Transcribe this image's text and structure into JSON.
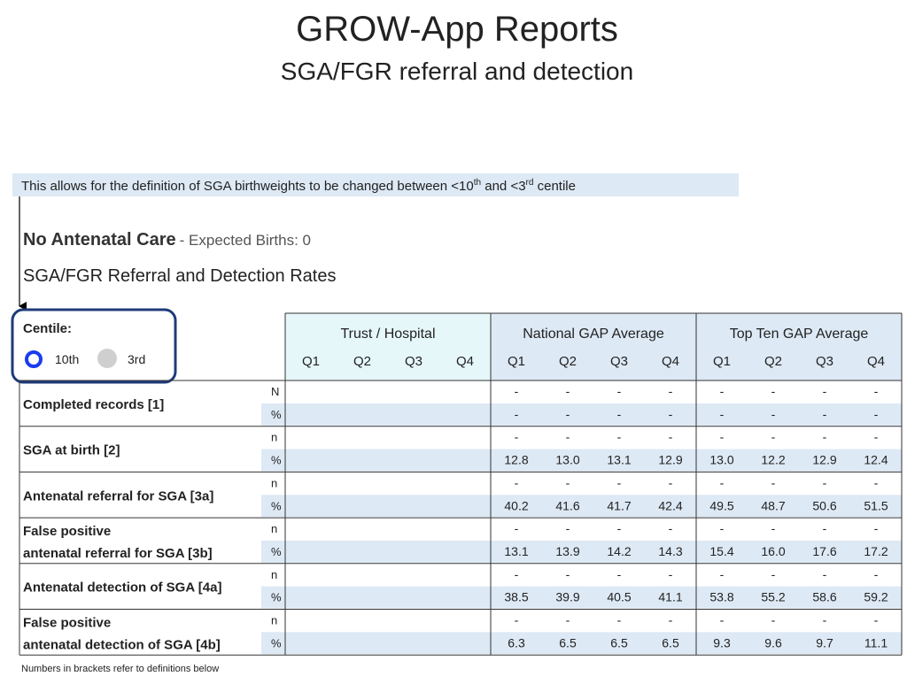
{
  "header": {
    "title": "GROW-App Reports",
    "subtitle": "SGA/FGR referral and detection"
  },
  "banner": {
    "parts": [
      "This allows for the definition of SGA birthweights to be changed between <10",
      "th",
      " and <3",
      "rd",
      " centile"
    ]
  },
  "section": {
    "name": "No Antenatal Care",
    "expected": "- Expected Births: 0",
    "heading": "SGA/FGR Referral and Detection Rates"
  },
  "centile": {
    "label": "Centile:",
    "options": [
      "10th",
      "3rd"
    ]
  },
  "table": {
    "groups": [
      "Trust / Hospital",
      "National GAP Average",
      "Top Ten GAP Average"
    ],
    "quarters": [
      "Q1",
      "Q2",
      "Q3",
      "Q4"
    ],
    "rows": [
      {
        "label": [
          "Completed records [1]"
        ],
        "keys": [
          "N",
          "%"
        ],
        "national": [
          [
            "-",
            "-",
            "-",
            "-"
          ],
          [
            "-",
            "-",
            "-",
            "-"
          ]
        ],
        "top": [
          [
            "-",
            "-",
            "-",
            "-"
          ],
          [
            "-",
            "-",
            "-",
            "-"
          ]
        ]
      },
      {
        "label": [
          "SGA at birth [2]"
        ],
        "keys": [
          "n",
          "%"
        ],
        "national": [
          [
            "-",
            "-",
            "-",
            "-"
          ],
          [
            "12.8",
            "13.0",
            "13.1",
            "12.9"
          ]
        ],
        "top": [
          [
            "-",
            "-",
            "-",
            "-"
          ],
          [
            "13.0",
            "12.2",
            "12.9",
            "12.4"
          ]
        ]
      },
      {
        "label": [
          "Antenatal referral for SGA [3a]"
        ],
        "keys": [
          "n",
          "%"
        ],
        "national": [
          [
            "-",
            "-",
            "-",
            "-"
          ],
          [
            "40.2",
            "41.6",
            "41.7",
            "42.4"
          ]
        ],
        "top": [
          [
            "-",
            "-",
            "-",
            "-"
          ],
          [
            "49.5",
            "48.7",
            "50.6",
            "51.5"
          ]
        ]
      },
      {
        "label": [
          "False positive",
          "antenatal referral for SGA [3b]"
        ],
        "keys": [
          "n",
          "%"
        ],
        "national": [
          [
            "-",
            "-",
            "-",
            "-"
          ],
          [
            "13.1",
            "13.9",
            "14.2",
            "14.3"
          ]
        ],
        "top": [
          [
            "-",
            "-",
            "-",
            "-"
          ],
          [
            "15.4",
            "16.0",
            "17.6",
            "17.2"
          ]
        ]
      },
      {
        "label": [
          "Antenatal detection of SGA [4a]"
        ],
        "keys": [
          "n",
          "%"
        ],
        "national": [
          [
            "-",
            "-",
            "-",
            "-"
          ],
          [
            "38.5",
            "39.9",
            "40.5",
            "41.1"
          ]
        ],
        "top": [
          [
            "-",
            "-",
            "-",
            "-"
          ],
          [
            "53.8",
            "55.2",
            "58.6",
            "59.2"
          ]
        ]
      },
      {
        "label": [
          "False positive",
          "antenatal detection of SGA [4b]"
        ],
        "keys": [
          "n",
          "%"
        ],
        "national": [
          [
            "-",
            "-",
            "-",
            "-"
          ],
          [
            "6.3",
            "6.5",
            "6.5",
            "6.5"
          ]
        ],
        "top": [
          [
            "-",
            "-",
            "-",
            "-"
          ],
          [
            "9.3",
            "9.6",
            "9.7",
            "11.1"
          ]
        ]
      }
    ],
    "footnote": "Numbers in brackets refer to definitions below"
  }
}
